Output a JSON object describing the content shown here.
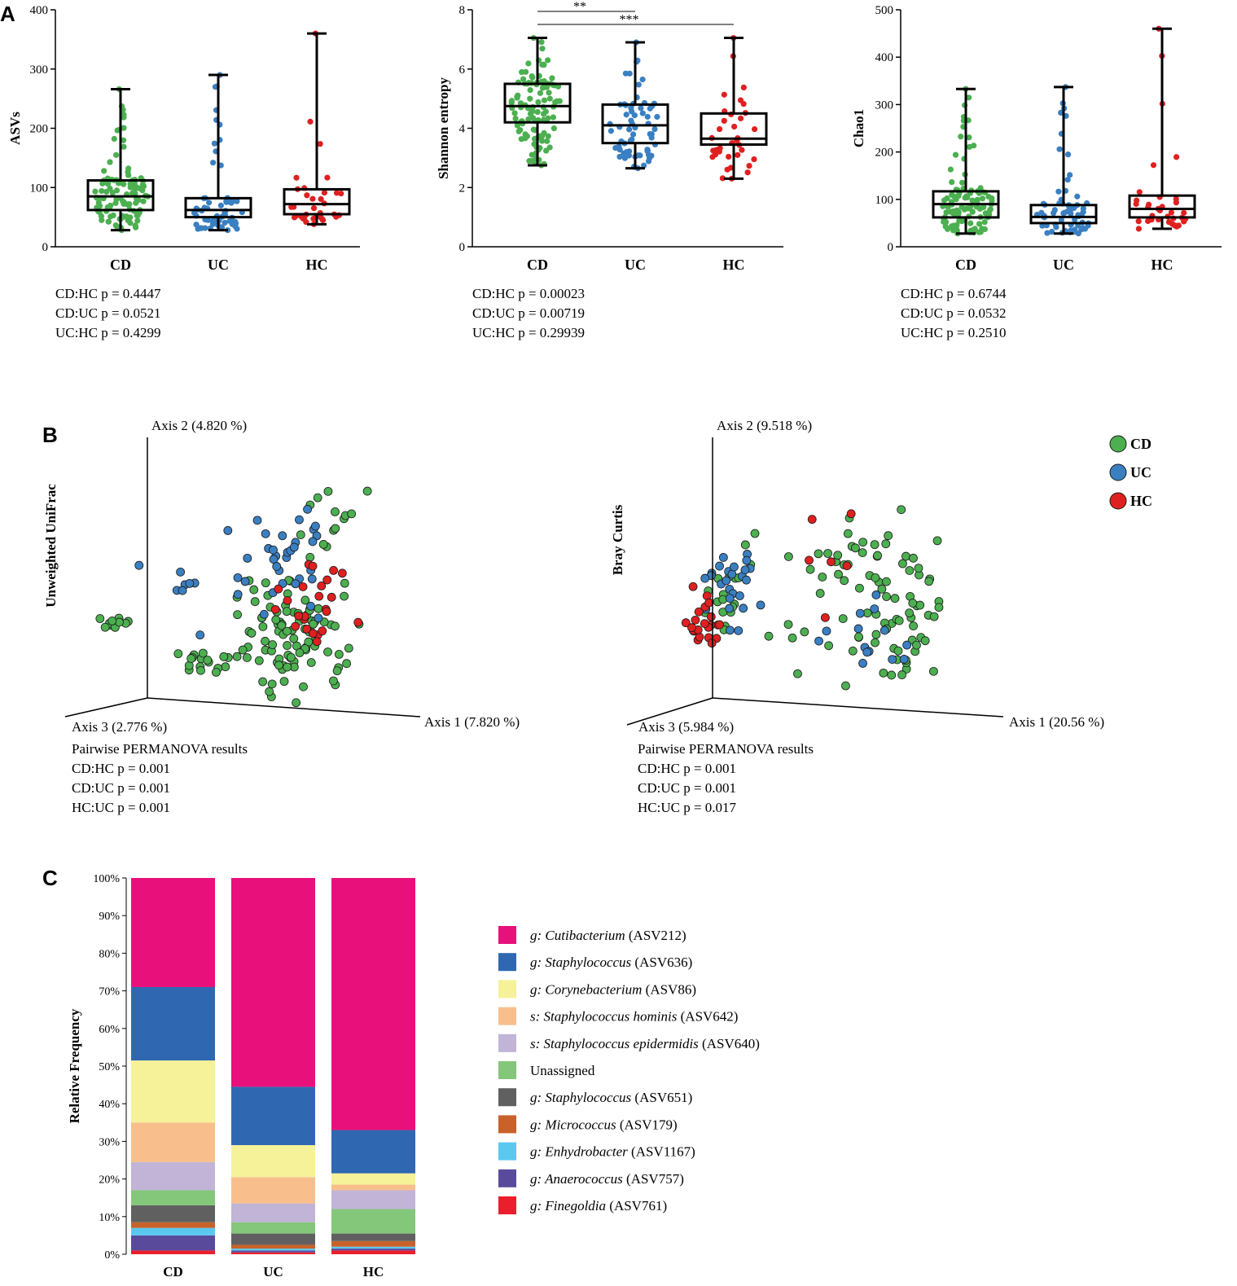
{
  "panels": {
    "a_label": "A",
    "b_label": "B",
    "c_label": "C"
  },
  "colors": {
    "CD": "#4caf50",
    "UC": "#3a7fc1",
    "HC": "#e02020",
    "box": "#000000"
  },
  "chart_data": [
    {
      "type": "box",
      "id": "asvs",
      "ylabel": "ASVs",
      "ylim": [
        0,
        400
      ],
      "yticks": [
        0,
        100,
        200,
        300,
        400
      ],
      "categories": [
        "CD",
        "UC",
        "HC"
      ],
      "boxes": [
        {
          "group": "CD",
          "min": 28,
          "q1": 62,
          "median": 85,
          "q3": 112,
          "max": 266
        },
        {
          "group": "UC",
          "min": 28,
          "q1": 50,
          "median": 62,
          "q3": 82,
          "max": 290
        },
        {
          "group": "HC",
          "min": 38,
          "q1": 55,
          "median": 72,
          "q3": 97,
          "max": 360
        }
      ],
      "stats": [
        "CD:HC p = 0.4447",
        "CD:UC p = 0.0521",
        "UC:HC p = 0.4299"
      ]
    },
    {
      "type": "box",
      "id": "shannon",
      "ylabel": "Shannon entropy",
      "ylim": [
        0,
        8
      ],
      "yticks": [
        0,
        2,
        4,
        6,
        8
      ],
      "categories": [
        "CD",
        "UC",
        "HC"
      ],
      "boxes": [
        {
          "group": "CD",
          "min": 2.75,
          "q1": 4.2,
          "median": 4.75,
          "q3": 5.5,
          "max": 7.05
        },
        {
          "group": "UC",
          "min": 2.65,
          "q1": 3.5,
          "median": 4.1,
          "q3": 4.8,
          "max": 6.9
        },
        {
          "group": "HC",
          "min": 2.3,
          "q1": 3.45,
          "median": 3.65,
          "q3": 4.5,
          "max": 7.05
        }
      ],
      "significance": [
        {
          "from": "CD",
          "to": "UC",
          "label": "**"
        },
        {
          "from": "CD",
          "to": "HC",
          "label": "***"
        }
      ],
      "stats": [
        "CD:HC p = 0.00023",
        "CD:UC p = 0.00719",
        "UC:HC p = 0.29939"
      ]
    },
    {
      "type": "box",
      "id": "chao1",
      "ylabel": "Chao1",
      "ylim": [
        0,
        500
      ],
      "yticks": [
        0,
        100,
        200,
        300,
        400,
        500
      ],
      "categories": [
        "CD",
        "UC",
        "HC"
      ],
      "boxes": [
        {
          "group": "CD",
          "min": 28,
          "q1": 62,
          "median": 90,
          "q3": 117,
          "max": 333
        },
        {
          "group": "UC",
          "min": 28,
          "q1": 50,
          "median": 63,
          "q3": 88,
          "max": 337
        },
        {
          "group": "HC",
          "min": 38,
          "q1": 62,
          "median": 80,
          "q3": 108,
          "max": 460
        }
      ],
      "stats": [
        "CD:HC p = 0.6744",
        "CD:UC p = 0.0532",
        "UC:HC p = 0.2510"
      ]
    },
    {
      "type": "scatter",
      "id": "unifrac",
      "ylabel": "Unweighted UniFrac",
      "axis1": "Axis 1 (7.820 %)",
      "axis2": "Axis 2 (4.820 %)",
      "axis3": "Axis 3 (2.776 %)",
      "permanova_title": "Pairwise PERMANOVA results",
      "stats": [
        "CD:HC p = 0.001",
        "CD:UC p = 0.001",
        "HC:UC p = 0.001"
      ]
    },
    {
      "type": "scatter",
      "id": "bray",
      "ylabel": "Bray Curtis",
      "axis1": "Axis 1 (20.56 %)",
      "axis2": "Axis 2 (9.518 %)",
      "axis3": "Axis 3 (5.984 %)",
      "permanova_title": "Pairwise PERMANOVA results",
      "stats": [
        "CD:HC p = 0.001",
        "CD:UC p = 0.001",
        "HC:UC p = 0.017"
      ]
    },
    {
      "type": "stacked-bar",
      "id": "taxa",
      "ylabel": "Relative Frequency",
      "ylim": [
        0,
        100
      ],
      "yticks": [
        "0%",
        "10%",
        "20%",
        "30%",
        "40%",
        "50%",
        "60%",
        "70%",
        "80%",
        "90%",
        "100%"
      ],
      "categories": [
        "CD",
        "UC",
        "HC"
      ],
      "series": [
        {
          "prefix": "g: ",
          "taxon": "Cutibacterium",
          "suffix": " (ASV212)",
          "color": "#e8107a",
          "values": [
            29,
            55.5,
            67
          ]
        },
        {
          "prefix": "g: ",
          "taxon": "Staphylococcus",
          "suffix": " (ASV636)",
          "color": "#2f68b0",
          "values": [
            19.5,
            15.5,
            11.5
          ]
        },
        {
          "prefix": "g: ",
          "taxon": "Corynebacterium",
          "suffix": " (ASV86)",
          "color": "#f5f299",
          "values": [
            16.5,
            8.5,
            3
          ]
        },
        {
          "prefix": "s: ",
          "taxon": "Staphylococcus hominis",
          "suffix": " (ASV642)",
          "color": "#f8bf8c",
          "values": [
            10.5,
            7,
            1.5
          ]
        },
        {
          "prefix": "s: ",
          "taxon": "Staphylococcus epidermidis",
          "suffix": " (ASV640)",
          "color": "#c1b4d6",
          "values": [
            7.5,
            5,
            5
          ]
        },
        {
          "prefix": "",
          "taxon": "Unassigned",
          "suffix": "",
          "color": "#84c67a",
          "values": [
            4,
            3,
            6.5
          ]
        },
        {
          "prefix": "g: ",
          "taxon": "Staphylococcus",
          "suffix": " (ASV651)",
          "color": "#606060",
          "values": [
            4.5,
            3,
            2
          ]
        },
        {
          "prefix": "g: ",
          "taxon": "Micrococcus",
          "suffix": " (ASV179)",
          "color": "#c8622a",
          "values": [
            1.5,
            1,
            1.5
          ]
        },
        {
          "prefix": "g: ",
          "taxon": "Enhydrobacter",
          "suffix": " (ASV1167)",
          "color": "#5bc8f0",
          "values": [
            2,
            0.5,
            0.5
          ]
        },
        {
          "prefix": "g: ",
          "taxon": "Anaerococcus",
          "suffix": " (ASV757)",
          "color": "#5a4a9c",
          "values": [
            4,
            0.5,
            0.5
          ]
        },
        {
          "prefix": "g: ",
          "taxon": "Finegoldia",
          "suffix": " (ASV761)",
          "color": "#ea1f2b",
          "values": [
            1,
            0.5,
            1
          ]
        }
      ]
    }
  ]
}
